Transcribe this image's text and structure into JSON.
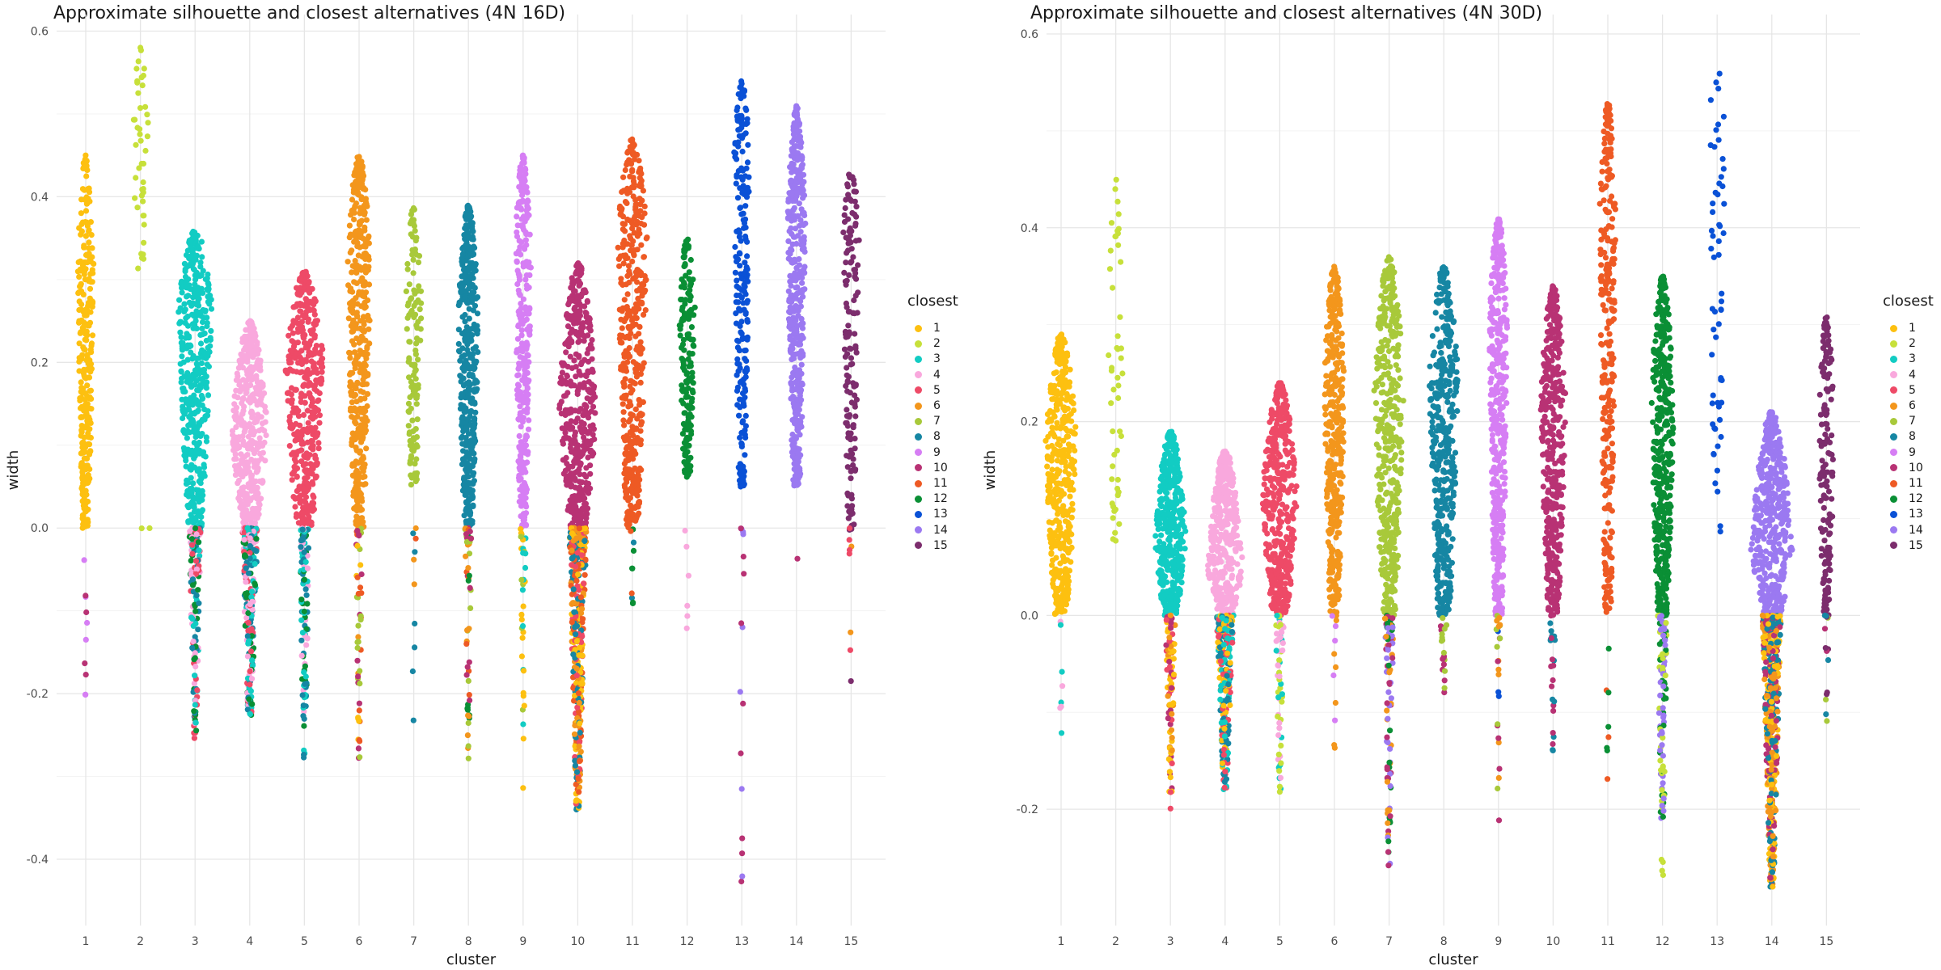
{
  "legend_title": "closest",
  "colors": {
    "1": "#FDC010",
    "2": "#C7E03A",
    "3": "#12CCC3",
    "4": "#F9A8DD",
    "5": "#EE4A67",
    "6": "#F3961C",
    "7": "#A8C93A",
    "8": "#1686A3",
    "9": "#D67EF4",
    "10": "#B83274",
    "11": "#EE5A24",
    "12": "#0A8F35",
    "13": "#0A51D6",
    "14": "#9B79F1",
    "15": "#7C2D6D"
  },
  "chart_data": [
    {
      "type": "scatter",
      "subtype": "beeswarm",
      "title": "Approximate silhouette and closest alternatives (4N 16D)",
      "xlabel": "cluster",
      "ylabel": "width",
      "categories": [
        "1",
        "2",
        "3",
        "4",
        "5",
        "6",
        "7",
        "8",
        "9",
        "10",
        "11",
        "12",
        "13",
        "14",
        "15"
      ],
      "yticks": [
        -0.4,
        -0.2,
        0.0,
        0.2,
        0.4,
        0.6
      ],
      "ytick_labels": [
        "-0.4",
        "-0.2",
        "0.0",
        "0.2",
        "0.4",
        "0.6"
      ],
      "ylim": [
        -0.48,
        0.62
      ],
      "grid": true,
      "legend_placement": "right",
      "series": [
        {
          "cluster": 1,
          "max": 0.45,
          "min": 0.0,
          "n": 300,
          "peak": 0.33,
          "neg_min": -0.22,
          "neg_n": 10,
          "neg_colors": [
            "9",
            "10"
          ]
        },
        {
          "cluster": 2,
          "max": 0.58,
          "min": 0.3,
          "n": 45,
          "peak": 0.52,
          "neg_min": 0.06,
          "neg_n": 2,
          "neg_colors": [
            "2"
          ]
        },
        {
          "cluster": 3,
          "max": 0.36,
          "min": 0.0,
          "n": 1100,
          "peak": 0.27,
          "neg_min": -0.26,
          "neg_n": 140,
          "neg_colors": [
            "12",
            "4",
            "5",
            "8",
            "3"
          ]
        },
        {
          "cluster": 4,
          "max": 0.25,
          "min": 0.0,
          "n": 900,
          "peak": 0.12,
          "neg_min": -0.24,
          "neg_n": 240,
          "neg_colors": [
            "5",
            "3",
            "8",
            "12",
            "4"
          ]
        },
        {
          "cluster": 5,
          "max": 0.31,
          "min": 0.0,
          "n": 1300,
          "peak": 0.2,
          "neg_min": -0.28,
          "neg_n": 110,
          "neg_colors": [
            "4",
            "12",
            "8",
            "3"
          ]
        },
        {
          "cluster": 6,
          "max": 0.45,
          "min": 0.0,
          "n": 700,
          "peak": 0.32,
          "neg_min": -0.28,
          "neg_n": 50,
          "neg_colors": [
            "10",
            "6",
            "1",
            "11",
            "7"
          ]
        },
        {
          "cluster": 7,
          "max": 0.39,
          "min": 0.05,
          "n": 130,
          "peak": 0.3,
          "neg_min": -0.24,
          "neg_n": 10,
          "neg_colors": [
            "8",
            "11",
            "6"
          ]
        },
        {
          "cluster": 8,
          "max": 0.39,
          "min": 0.0,
          "n": 450,
          "peak": 0.26,
          "neg_min": -0.28,
          "neg_n": 55,
          "neg_colors": [
            "11",
            "12",
            "7",
            "6",
            "10"
          ]
        },
        {
          "cluster": 9,
          "max": 0.45,
          "min": 0.0,
          "n": 300,
          "peak": 0.34,
          "neg_min": -0.32,
          "neg_n": 35,
          "neg_colors": [
            "1",
            "7",
            "3"
          ]
        },
        {
          "cluster": 10,
          "max": 0.32,
          "min": 0.0,
          "n": 1300,
          "peak": 0.15,
          "neg_min": -0.34,
          "neg_n": 400,
          "neg_colors": [
            "11",
            "1",
            "6",
            "8",
            "5"
          ]
        },
        {
          "cluster": 11,
          "max": 0.47,
          "min": 0.0,
          "n": 1200,
          "peak": 0.35,
          "neg_min": -0.1,
          "neg_n": 10,
          "neg_colors": [
            "11",
            "8",
            "12"
          ]
        },
        {
          "cluster": 12,
          "max": 0.35,
          "min": 0.06,
          "n": 170,
          "peak": 0.26,
          "neg_min": -0.13,
          "neg_n": 6,
          "neg_colors": [
            "4"
          ]
        },
        {
          "cluster": 13,
          "max": 0.54,
          "min": 0.05,
          "n": 220,
          "peak": 0.45,
          "neg_min": -0.43,
          "neg_n": 16,
          "neg_colors": [
            "10",
            "14"
          ]
        },
        {
          "cluster": 14,
          "max": 0.51,
          "min": 0.05,
          "n": 420,
          "peak": 0.37,
          "neg_min": -0.05,
          "neg_n": 1,
          "neg_colors": [
            "10"
          ]
        },
        {
          "cluster": 15,
          "max": 0.44,
          "min": 0.0,
          "n": 150,
          "peak": 0.35,
          "neg_min": -0.2,
          "neg_n": 10,
          "neg_colors": [
            "5",
            "6",
            "15"
          ]
        }
      ]
    },
    {
      "type": "scatter",
      "subtype": "beeswarm",
      "title": "Approximate silhouette and closest alternatives (4N 30D)",
      "xlabel": "cluster",
      "ylabel": "width",
      "categories": [
        "1",
        "2",
        "3",
        "4",
        "5",
        "6",
        "7",
        "8",
        "9",
        "10",
        "11",
        "12",
        "13",
        "14",
        "15"
      ],
      "yticks": [
        -0.2,
        0.0,
        0.2,
        0.4,
        0.6
      ],
      "ytick_labels": [
        "-0.2",
        "0.0",
        "0.2",
        "0.4",
        "0.6"
      ],
      "ylim": [
        -0.32,
        0.62
      ],
      "grid": true,
      "legend_placement": "right",
      "series": [
        {
          "cluster": 1,
          "max": 0.29,
          "min": 0.0,
          "n": 900,
          "peak": 0.18,
          "neg_min": -0.14,
          "neg_n": 8,
          "neg_colors": [
            "3",
            "4"
          ]
        },
        {
          "cluster": 2,
          "max": 0.45,
          "min": 0.07,
          "n": 50,
          "peak": 0.3,
          "neg_min": 0.07,
          "neg_n": 0,
          "neg_colors": [
            "2"
          ]
        },
        {
          "cluster": 3,
          "max": 0.19,
          "min": 0.0,
          "n": 600,
          "peak": 0.08,
          "neg_min": -0.21,
          "neg_n": 90,
          "neg_colors": [
            "1",
            "6",
            "5",
            "10"
          ]
        },
        {
          "cluster": 4,
          "max": 0.17,
          "min": 0.0,
          "n": 700,
          "peak": 0.05,
          "neg_min": -0.18,
          "neg_n": 240,
          "neg_colors": [
            "5",
            "3",
            "1",
            "8"
          ]
        },
        {
          "cluster": 5,
          "max": 0.24,
          "min": 0.0,
          "n": 1000,
          "peak": 0.12,
          "neg_min": -0.19,
          "neg_n": 60,
          "neg_colors": [
            "3",
            "4",
            "2"
          ]
        },
        {
          "cluster": 6,
          "max": 0.36,
          "min": 0.0,
          "n": 500,
          "peak": 0.25,
          "neg_min": -0.14,
          "neg_n": 12,
          "neg_colors": [
            "6",
            "9"
          ]
        },
        {
          "cluster": 7,
          "max": 0.37,
          "min": 0.0,
          "n": 1100,
          "peak": 0.23,
          "neg_min": -0.26,
          "neg_n": 90,
          "neg_colors": [
            "6",
            "10",
            "14",
            "12"
          ]
        },
        {
          "cluster": 8,
          "max": 0.36,
          "min": 0.0,
          "n": 1000,
          "peak": 0.25,
          "neg_min": -0.08,
          "neg_n": 20,
          "neg_colors": [
            "10",
            "7"
          ]
        },
        {
          "cluster": 9,
          "max": 0.41,
          "min": 0.0,
          "n": 450,
          "peak": 0.3,
          "neg_min": -0.23,
          "neg_n": 25,
          "neg_colors": [
            "6",
            "13",
            "10",
            "7"
          ]
        },
        {
          "cluster": 10,
          "max": 0.34,
          "min": 0.0,
          "n": 700,
          "peak": 0.22,
          "neg_min": -0.14,
          "neg_n": 25,
          "neg_colors": [
            "10",
            "8"
          ]
        },
        {
          "cluster": 11,
          "max": 0.53,
          "min": 0.0,
          "n": 300,
          "peak": 0.42,
          "neg_min": -0.21,
          "neg_n": 8,
          "neg_colors": [
            "12",
            "11"
          ]
        },
        {
          "cluster": 12,
          "max": 0.35,
          "min": 0.0,
          "n": 600,
          "peak": 0.22,
          "neg_min": -0.27,
          "neg_n": 110,
          "neg_colors": [
            "2",
            "14",
            "12"
          ]
        },
        {
          "cluster": 13,
          "max": 0.58,
          "min": 0.08,
          "n": 60,
          "peak": 0.52,
          "neg_min": 0.08,
          "neg_n": 0,
          "neg_colors": [
            "13"
          ]
        },
        {
          "cluster": 14,
          "max": 0.21,
          "min": 0.0,
          "n": 1200,
          "peak": 0.07,
          "neg_min": -0.28,
          "neg_n": 450,
          "neg_colors": [
            "6",
            "8",
            "1",
            "10"
          ]
        },
        {
          "cluster": 15,
          "max": 0.31,
          "min": 0.0,
          "n": 160,
          "peak": 0.21,
          "neg_min": -0.11,
          "neg_n": 14,
          "neg_colors": [
            "15",
            "8",
            "7",
            "10"
          ]
        }
      ]
    }
  ]
}
